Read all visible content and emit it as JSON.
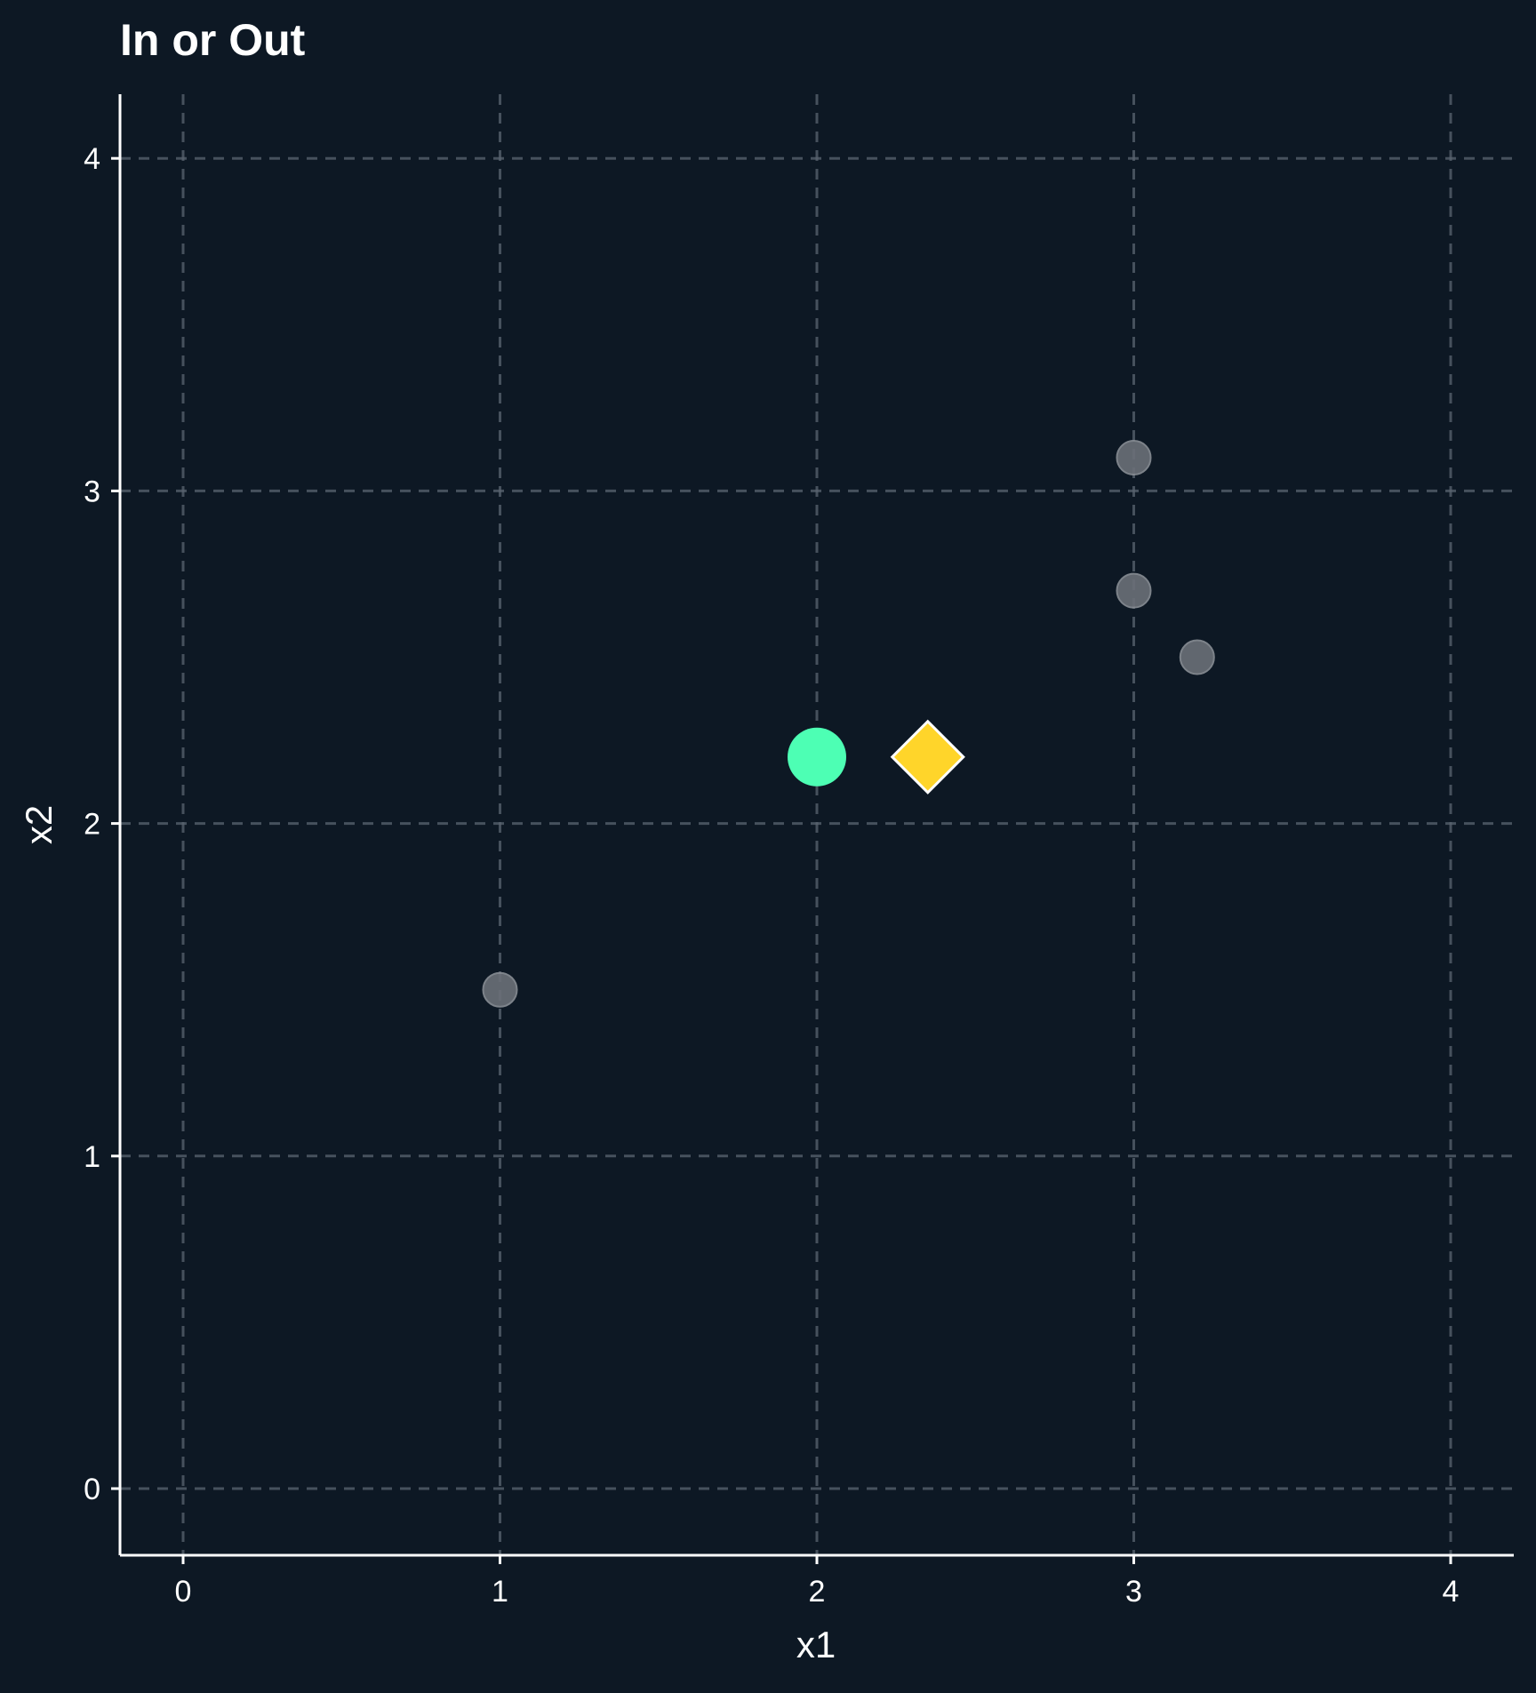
{
  "chart_data": {
    "type": "scatter",
    "title": "In or Out",
    "xlabel": "x1",
    "ylabel": "x2",
    "xlim": [
      -0.2,
      4.2
    ],
    "ylim": [
      -0.2,
      4.2
    ],
    "x_ticks": [
      0,
      1,
      2,
      3,
      4
    ],
    "y_ticks": [
      0,
      1,
      2,
      3,
      4
    ],
    "x_tick_labels": [
      "0",
      "1",
      "2",
      "3",
      "4"
    ],
    "y_tick_labels": [
      "0",
      "1",
      "2",
      "3",
      "4"
    ],
    "grid": true,
    "grid_style": "dashed",
    "series": [
      {
        "marker": "circle",
        "color": "#6b7078",
        "points": [
          {
            "x": 1.0,
            "y": 1.5
          },
          {
            "x": 3.0,
            "y": 3.1
          },
          {
            "x": 3.0,
            "y": 2.7
          },
          {
            "x": 3.2,
            "y": 2.5
          }
        ]
      },
      {
        "marker": "circle",
        "color": "#4dffb4",
        "points": [
          {
            "x": 2.0,
            "y": 2.2
          }
        ]
      },
      {
        "marker": "diamond",
        "color": "#ffd52a",
        "points": [
          {
            "x": 2.35,
            "y": 2.2
          }
        ]
      }
    ]
  },
  "colors": {
    "background": "#0d1824",
    "axis": "#ffffff",
    "grid": "#5a6470",
    "text": "#ffffff"
  }
}
